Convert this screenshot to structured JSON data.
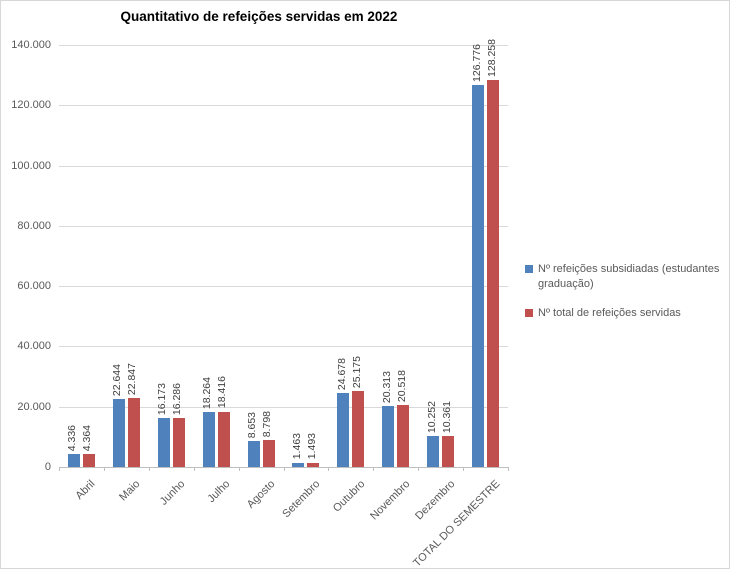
{
  "chart_data": {
    "type": "bar",
    "title": "Quantitativo de refeições servidas em 2022",
    "categories": [
      "Abril",
      "Maio",
      "Junho",
      "Julho",
      "Agosto",
      "Setembro",
      "Outubro",
      "Novembro",
      "Dezembro",
      "TOTAL DO SEMESTRE"
    ],
    "series": [
      {
        "name": "Nº refeições subsidiadas (estudantes graduação)",
        "color": "#4F81BD",
        "values": [
          4336,
          22644,
          16173,
          18264,
          8653,
          1463,
          24678,
          20313,
          10252,
          126776
        ],
        "labels": [
          "4.336",
          "22.644",
          "16.173",
          "18.264",
          "8.653",
          "1.463",
          "24.678",
          "20.313",
          "10.252",
          "126.776"
        ]
      },
      {
        "name": "Nº total de refeições servidas",
        "color": "#C0504D",
        "values": [
          4364,
          22847,
          16286,
          18416,
          8798,
          1493,
          25175,
          20518,
          10361,
          128258
        ],
        "labels": [
          "4.364",
          "22.847",
          "16.286",
          "18.416",
          "8.798",
          "1.493",
          "25.175",
          "20.518",
          "10.361",
          "128.258"
        ]
      }
    ],
    "xlabel": "",
    "ylabel": "",
    "ylim": [
      0,
      140000
    ],
    "ytick_step": 20000,
    "ytick_labels": [
      "0",
      "20.000",
      "40.000",
      "60.000",
      "80.000",
      "100.000",
      "120.000",
      "140.000"
    ],
    "grid": true,
    "data_labels": true,
    "data_label_orientation": "vertical",
    "x_label_rotation_deg": 45,
    "legend_position": "right"
  }
}
